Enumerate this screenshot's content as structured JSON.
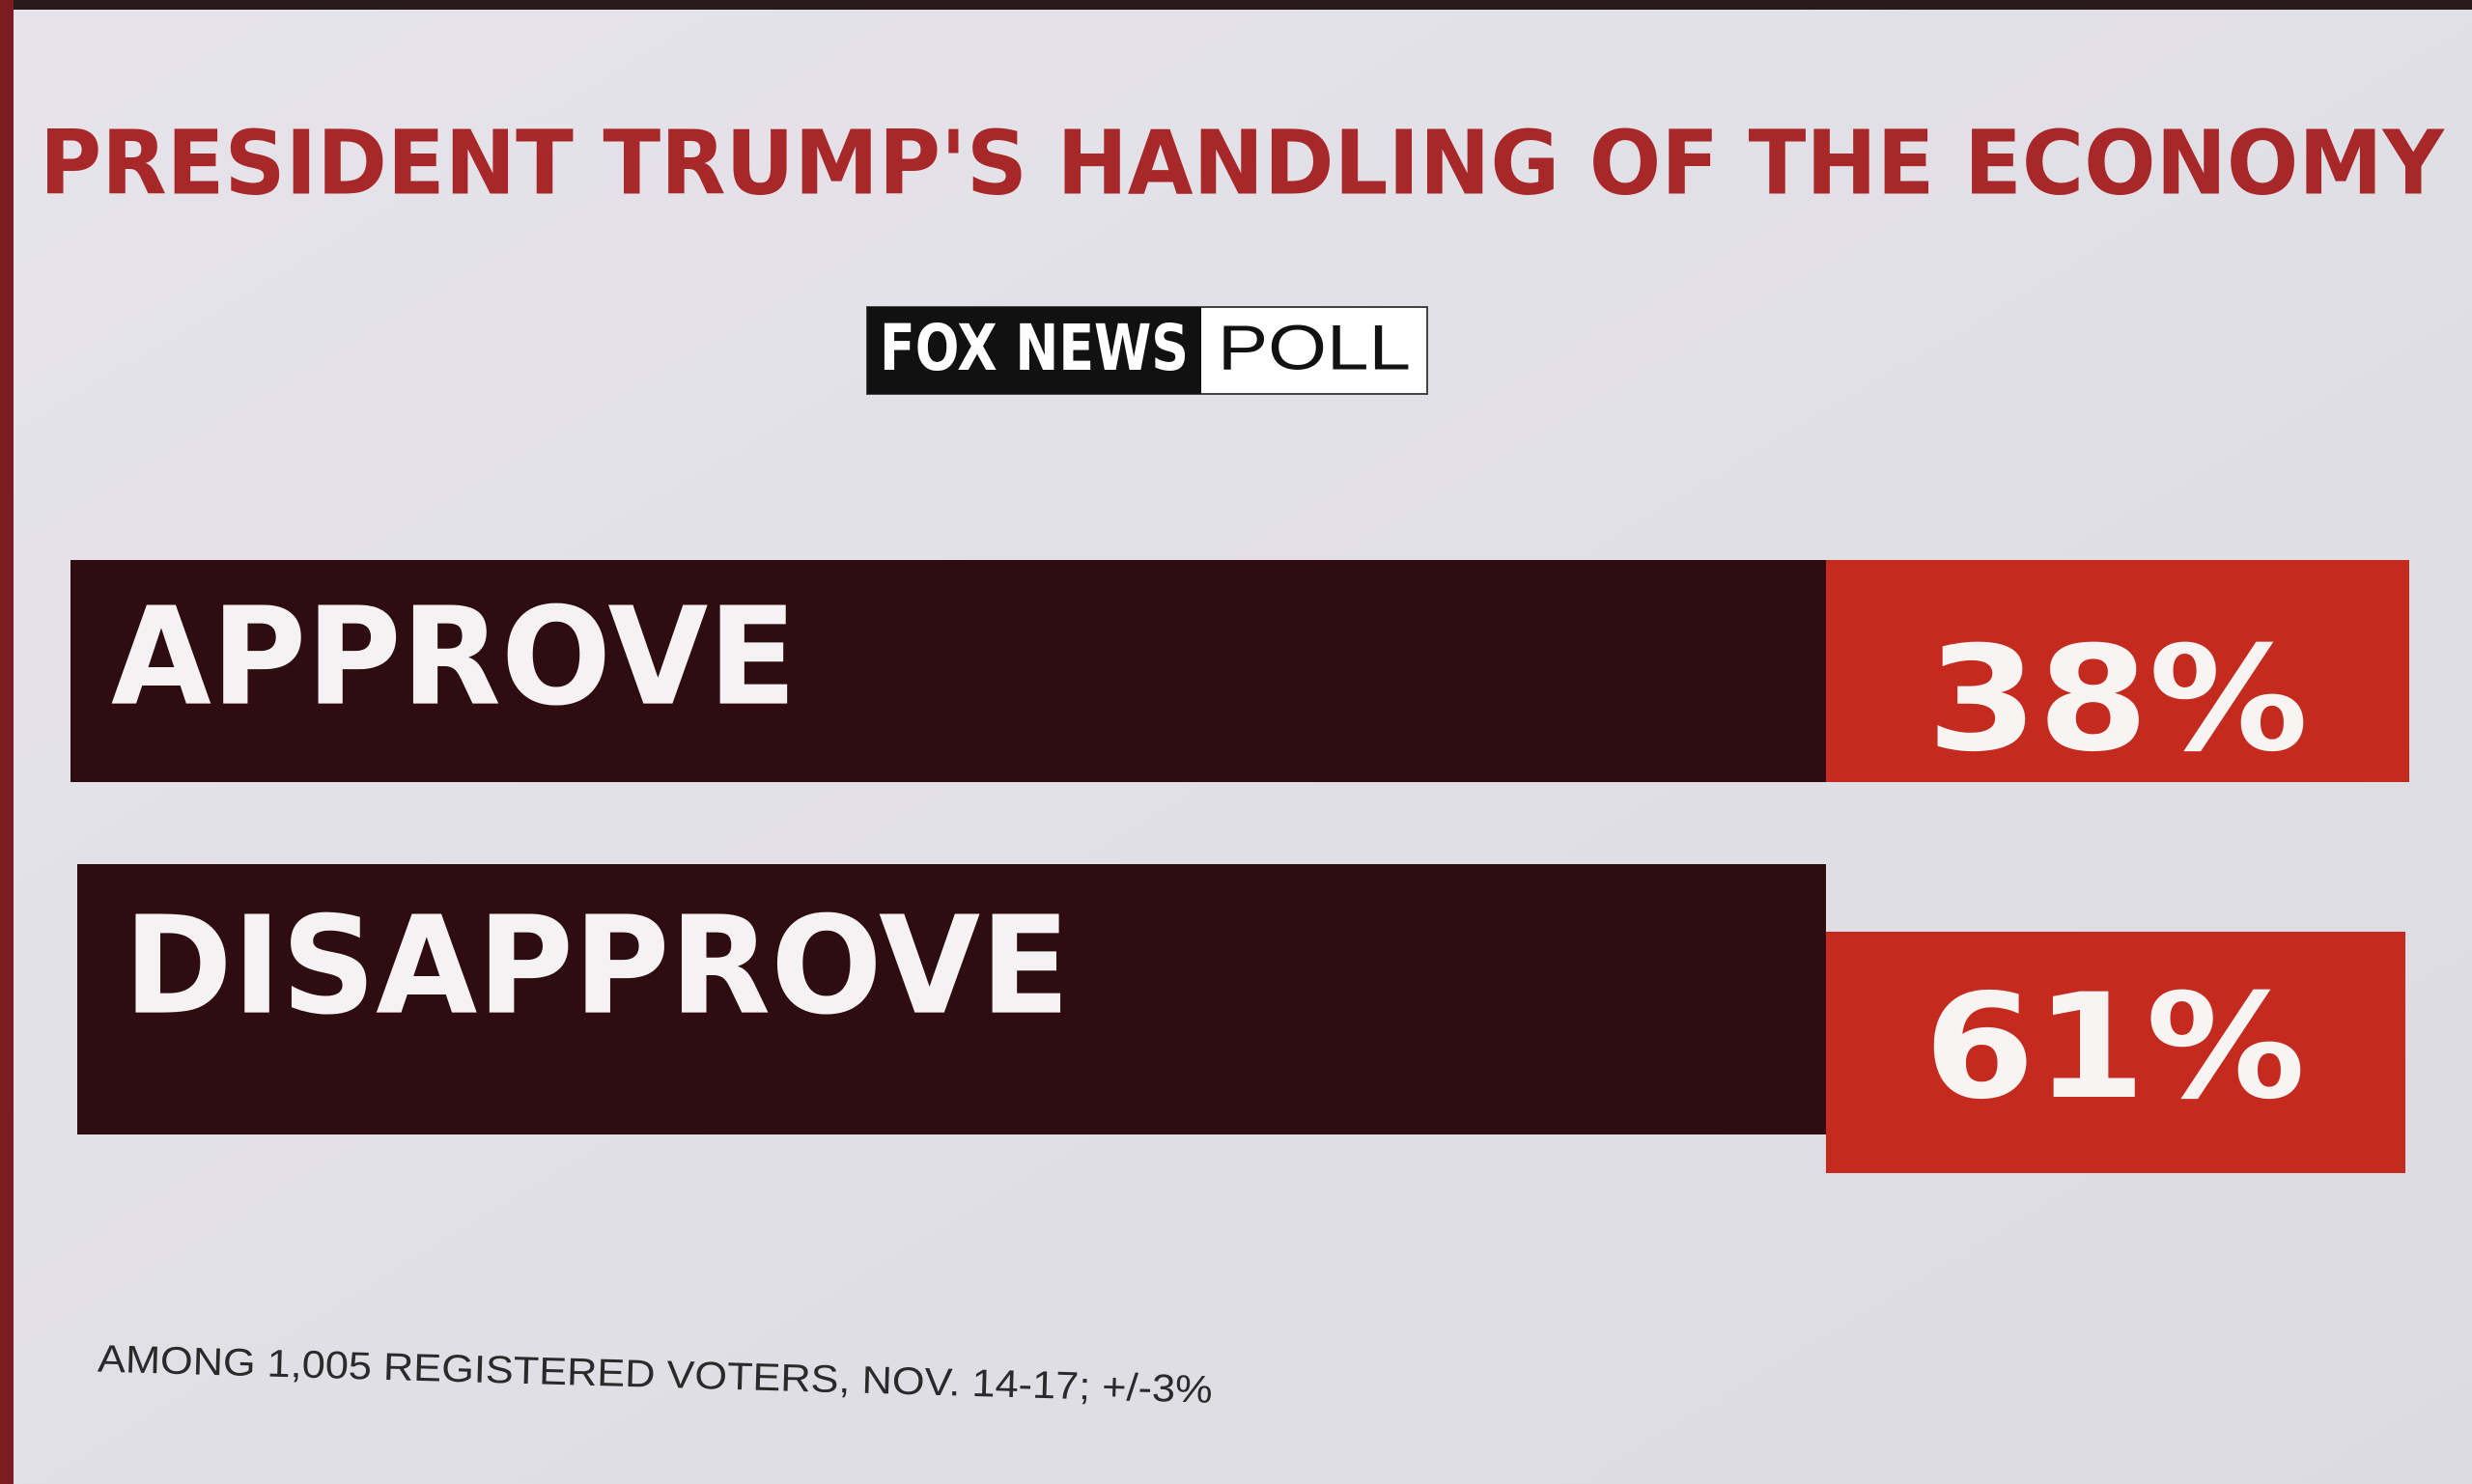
{
  "title": "PRESIDENT TRUMP'S HANDLING OF THE ECONOMY",
  "logo": {
    "brand": "FOX NEWS",
    "label": "POLL"
  },
  "rows": [
    {
      "label": "APPROVE",
      "value": "38%"
    },
    {
      "label": "DISAPPROVE",
      "value": "61%"
    }
  ],
  "footnote": "AMONG 1,005 REGISTERED VOTERS, NOV. 14-17; +/-3%"
}
